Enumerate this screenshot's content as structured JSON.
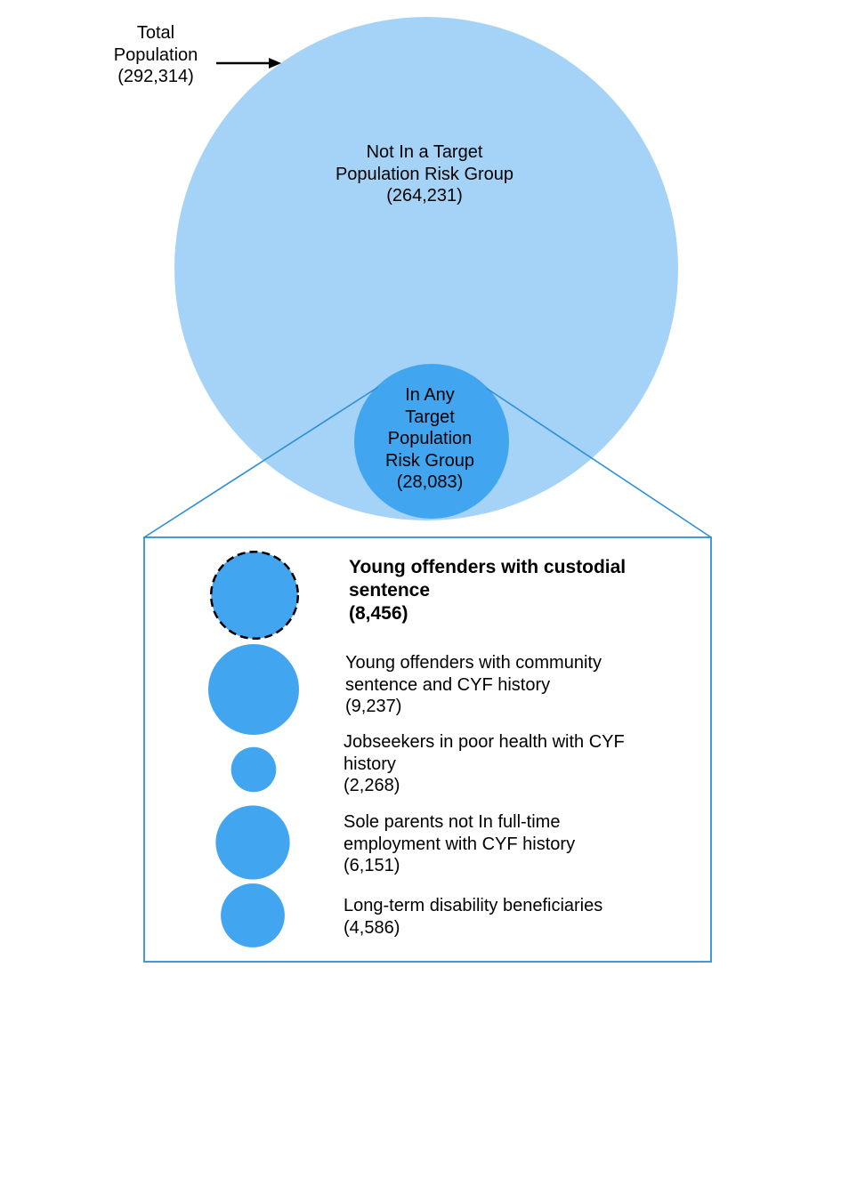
{
  "colors": {
    "outer_circle": "#a5d3f7",
    "inner_circle": "#42a5f0",
    "zoom_lines": "#2e8fd8",
    "arrow": "#000000"
  },
  "total": {
    "line1": "Total",
    "line2": "Population",
    "line3": "(292,314)"
  },
  "not_in_group": {
    "line1": "Not In a Target",
    "line2": "Population Risk Group",
    "line3": "(264,231)"
  },
  "in_group": {
    "line1": "In Any",
    "line2": "Target",
    "line3": "Population",
    "line4": "Risk Group",
    "line5": "(28,083)"
  },
  "groups": [
    {
      "value": 8456,
      "highlighted": true,
      "line1": "Young offenders with custodial",
      "line2": "sentence",
      "line3": "(8,456)"
    },
    {
      "value": 9237,
      "highlighted": false,
      "line1": "Young offenders with community",
      "line2": "sentence and CYF history",
      "line3": "(9,237)"
    },
    {
      "value": 2268,
      "highlighted": false,
      "line1": "Jobseekers in poor health with CYF",
      "line2": "history",
      "line3": "(2,268)"
    },
    {
      "value": 6151,
      "highlighted": false,
      "line1": "Sole parents not In full-time",
      "line2": "employment with CYF history",
      "line3": "(6,151)"
    },
    {
      "value": 4586,
      "highlighted": false,
      "line1": "Long-term disability beneficiaries",
      "line2": "(4,586)"
    }
  ]
}
